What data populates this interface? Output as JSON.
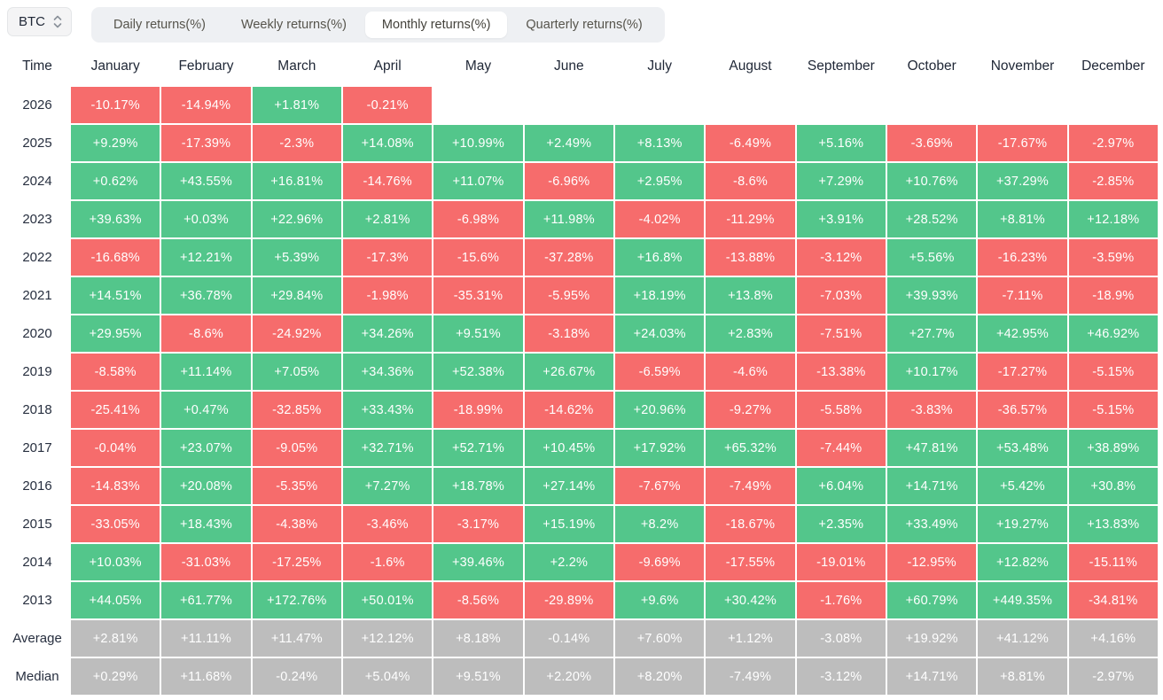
{
  "selector": {
    "value": "BTC"
  },
  "tabs": [
    {
      "label": "Daily returns(%)",
      "active": false
    },
    {
      "label": "Weekly returns(%)",
      "active": false
    },
    {
      "label": "Monthly returns(%)",
      "active": true
    },
    {
      "label": "Quarterly returns(%)",
      "active": false
    }
  ],
  "colors": {
    "positive": "#53c68b",
    "negative": "#f66c6c",
    "neutral": "#bdbdbd"
  },
  "table": {
    "time_header": "Time",
    "months": [
      "January",
      "February",
      "March",
      "April",
      "May",
      "June",
      "July",
      "August",
      "September",
      "October",
      "November",
      "December"
    ],
    "rows": [
      {
        "label": "2026",
        "type": "year",
        "values": [
          "-10.17%",
          "-14.94%",
          "+1.81%",
          "-0.21%",
          null,
          null,
          null,
          null,
          null,
          null,
          null,
          null
        ]
      },
      {
        "label": "2025",
        "type": "year",
        "values": [
          "+9.29%",
          "-17.39%",
          "-2.3%",
          "+14.08%",
          "+10.99%",
          "+2.49%",
          "+8.13%",
          "-6.49%",
          "+5.16%",
          "-3.69%",
          "-17.67%",
          "-2.97%"
        ]
      },
      {
        "label": "2024",
        "type": "year",
        "values": [
          "+0.62%",
          "+43.55%",
          "+16.81%",
          "-14.76%",
          "+11.07%",
          "-6.96%",
          "+2.95%",
          "-8.6%",
          "+7.29%",
          "+10.76%",
          "+37.29%",
          "-2.85%"
        ]
      },
      {
        "label": "2023",
        "type": "year",
        "values": [
          "+39.63%",
          "+0.03%",
          "+22.96%",
          "+2.81%",
          "-6.98%",
          "+11.98%",
          "-4.02%",
          "-11.29%",
          "+3.91%",
          "+28.52%",
          "+8.81%",
          "+12.18%"
        ]
      },
      {
        "label": "2022",
        "type": "year",
        "values": [
          "-16.68%",
          "+12.21%",
          "+5.39%",
          "-17.3%",
          "-15.6%",
          "-37.28%",
          "+16.8%",
          "-13.88%",
          "-3.12%",
          "+5.56%",
          "-16.23%",
          "-3.59%"
        ]
      },
      {
        "label": "2021",
        "type": "year",
        "values": [
          "+14.51%",
          "+36.78%",
          "+29.84%",
          "-1.98%",
          "-35.31%",
          "-5.95%",
          "+18.19%",
          "+13.8%",
          "-7.03%",
          "+39.93%",
          "-7.11%",
          "-18.9%"
        ]
      },
      {
        "label": "2020",
        "type": "year",
        "values": [
          "+29.95%",
          "-8.6%",
          "-24.92%",
          "+34.26%",
          "+9.51%",
          "-3.18%",
          "+24.03%",
          "+2.83%",
          "-7.51%",
          "+27.7%",
          "+42.95%",
          "+46.92%"
        ]
      },
      {
        "label": "2019",
        "type": "year",
        "values": [
          "-8.58%",
          "+11.14%",
          "+7.05%",
          "+34.36%",
          "+52.38%",
          "+26.67%",
          "-6.59%",
          "-4.6%",
          "-13.38%",
          "+10.17%",
          "-17.27%",
          "-5.15%"
        ]
      },
      {
        "label": "2018",
        "type": "year",
        "values": [
          "-25.41%",
          "+0.47%",
          "-32.85%",
          "+33.43%",
          "-18.99%",
          "-14.62%",
          "+20.96%",
          "-9.27%",
          "-5.58%",
          "-3.83%",
          "-36.57%",
          "-5.15%"
        ]
      },
      {
        "label": "2017",
        "type": "year",
        "values": [
          "-0.04%",
          "+23.07%",
          "-9.05%",
          "+32.71%",
          "+52.71%",
          "+10.45%",
          "+17.92%",
          "+65.32%",
          "-7.44%",
          "+47.81%",
          "+53.48%",
          "+38.89%"
        ]
      },
      {
        "label": "2016",
        "type": "year",
        "values": [
          "-14.83%",
          "+20.08%",
          "-5.35%",
          "+7.27%",
          "+18.78%",
          "+27.14%",
          "-7.67%",
          "-7.49%",
          "+6.04%",
          "+14.71%",
          "+5.42%",
          "+30.8%"
        ]
      },
      {
        "label": "2015",
        "type": "year",
        "values": [
          "-33.05%",
          "+18.43%",
          "-4.38%",
          "-3.46%",
          "-3.17%",
          "+15.19%",
          "+8.2%",
          "-18.67%",
          "+2.35%",
          "+33.49%",
          "+19.27%",
          "+13.83%"
        ]
      },
      {
        "label": "2014",
        "type": "year",
        "values": [
          "+10.03%",
          "-31.03%",
          "-17.25%",
          "-1.6%",
          "+39.46%",
          "+2.2%",
          "-9.69%",
          "-17.55%",
          "-19.01%",
          "-12.95%",
          "+12.82%",
          "-15.11%"
        ]
      },
      {
        "label": "2013",
        "type": "year",
        "values": [
          "+44.05%",
          "+61.77%",
          "+172.76%",
          "+50.01%",
          "-8.56%",
          "-29.89%",
          "+9.6%",
          "+30.42%",
          "-1.76%",
          "+60.79%",
          "+449.35%",
          "-34.81%"
        ]
      },
      {
        "label": "Average",
        "type": "summary",
        "values": [
          "+2.81%",
          "+11.11%",
          "+11.47%",
          "+12.12%",
          "+8.18%",
          "-0.14%",
          "+7.60%",
          "+1.12%",
          "-3.08%",
          "+19.92%",
          "+41.12%",
          "+4.16%"
        ]
      },
      {
        "label": "Median",
        "type": "summary",
        "values": [
          "+0.29%",
          "+11.68%",
          "-0.24%",
          "+5.04%",
          "+9.51%",
          "+2.20%",
          "+8.20%",
          "-7.49%",
          "-3.12%",
          "+14.71%",
          "+8.81%",
          "-2.97%"
        ]
      }
    ]
  },
  "chart_data": {
    "type": "heatmap",
    "title": "BTC Monthly returns(%)",
    "x_categories": [
      "January",
      "February",
      "March",
      "April",
      "May",
      "June",
      "July",
      "August",
      "September",
      "October",
      "November",
      "December"
    ],
    "y_categories": [
      "2026",
      "2025",
      "2024",
      "2023",
      "2022",
      "2021",
      "2020",
      "2019",
      "2018",
      "2017",
      "2016",
      "2015",
      "2014",
      "2013",
      "Average",
      "Median"
    ],
    "values": [
      [
        -10.17,
        -14.94,
        1.81,
        -0.21,
        null,
        null,
        null,
        null,
        null,
        null,
        null,
        null
      ],
      [
        9.29,
        -17.39,
        -2.3,
        14.08,
        10.99,
        2.49,
        8.13,
        -6.49,
        5.16,
        -3.69,
        -17.67,
        -2.97
      ],
      [
        0.62,
        43.55,
        16.81,
        -14.76,
        11.07,
        -6.96,
        2.95,
        -8.6,
        7.29,
        10.76,
        37.29,
        -2.85
      ],
      [
        39.63,
        0.03,
        22.96,
        2.81,
        -6.98,
        11.98,
        -4.02,
        -11.29,
        3.91,
        28.52,
        8.81,
        12.18
      ],
      [
        -16.68,
        12.21,
        5.39,
        -17.3,
        -15.6,
        -37.28,
        16.8,
        -13.88,
        -3.12,
        5.56,
        -16.23,
        -3.59
      ],
      [
        14.51,
        36.78,
        29.84,
        -1.98,
        -35.31,
        -5.95,
        18.19,
        13.8,
        -7.03,
        39.93,
        -7.11,
        -18.9
      ],
      [
        29.95,
        -8.6,
        -24.92,
        34.26,
        9.51,
        -3.18,
        24.03,
        2.83,
        -7.51,
        27.7,
        42.95,
        46.92
      ],
      [
        -8.58,
        11.14,
        7.05,
        34.36,
        52.38,
        26.67,
        -6.59,
        -4.6,
        -13.38,
        10.17,
        -17.27,
        -5.15
      ],
      [
        -25.41,
        0.47,
        -32.85,
        33.43,
        -18.99,
        -14.62,
        20.96,
        -9.27,
        -5.58,
        -3.83,
        -36.57,
        -5.15
      ],
      [
        -0.04,
        23.07,
        -9.05,
        32.71,
        52.71,
        10.45,
        17.92,
        65.32,
        -7.44,
        47.81,
        53.48,
        38.89
      ],
      [
        -14.83,
        20.08,
        -5.35,
        7.27,
        18.78,
        27.14,
        -7.67,
        -7.49,
        6.04,
        14.71,
        5.42,
        30.8
      ],
      [
        -33.05,
        18.43,
        -4.38,
        -3.46,
        -3.17,
        15.19,
        8.2,
        -18.67,
        2.35,
        33.49,
        19.27,
        13.83
      ],
      [
        10.03,
        -31.03,
        -17.25,
        -1.6,
        39.46,
        2.2,
        -9.69,
        -17.55,
        -19.01,
        -12.95,
        12.82,
        -15.11
      ],
      [
        44.05,
        61.77,
        172.76,
        50.01,
        -8.56,
        -29.89,
        9.6,
        30.42,
        -1.76,
        60.79,
        449.35,
        -34.81
      ],
      [
        2.81,
        11.11,
        11.47,
        12.12,
        8.18,
        -0.14,
        7.6,
        1.12,
        -3.08,
        19.92,
        41.12,
        4.16
      ],
      [
        0.29,
        11.68,
        -0.24,
        5.04,
        9.51,
        2.2,
        8.2,
        -7.49,
        -3.12,
        14.71,
        8.81,
        -2.97
      ]
    ],
    "color_rule": "green positive, red negative, gray for Average/Median rows",
    "legend": "none",
    "grid": "off"
  }
}
